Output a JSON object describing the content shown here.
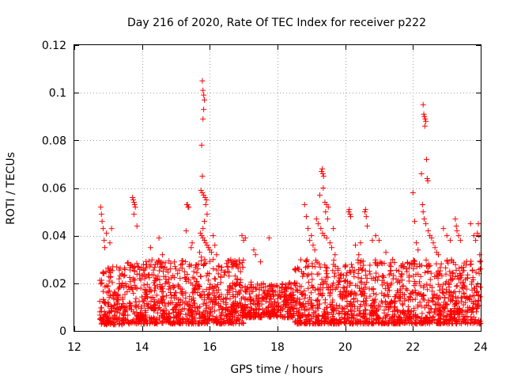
{
  "chart_data": {
    "type": "scatter",
    "title": "Day 216 of 2020, Rate Of TEC Index for receiver p222",
    "xlabel": "GPS time / hours",
    "ylabel": "ROTI / TECUs",
    "xlim": [
      12,
      24
    ],
    "ylim": [
      0,
      0.12
    ],
    "x_ticks": [
      12,
      14,
      16,
      18,
      20,
      22,
      24
    ],
    "x_tick_labels": [
      "12",
      "14",
      "16",
      "18",
      "20",
      "22",
      "24"
    ],
    "y_ticks": [
      0,
      0.02,
      0.04,
      0.06,
      0.08,
      0.1,
      0.12
    ],
    "y_tick_labels": [
      "0",
      "0.02",
      "0.04",
      "0.06",
      "0.08",
      "0.1",
      "0.12"
    ],
    "grid": true,
    "marker": "+",
    "marker_color": "#ff0000",
    "series": [
      {
        "name": "ROTI",
        "points": [
          [
            12.78,
            0.052
          ],
          [
            12.8,
            0.049
          ],
          [
            12.82,
            0.046
          ],
          [
            12.85,
            0.043
          ],
          [
            12.88,
            0.038
          ],
          [
            12.9,
            0.035
          ],
          [
            12.95,
            0.041
          ],
          [
            13.1,
            0.043
          ],
          [
            13.05,
            0.037
          ],
          [
            13.72,
            0.056
          ],
          [
            13.74,
            0.055
          ],
          [
            13.76,
            0.054
          ],
          [
            13.78,
            0.053
          ],
          [
            13.8,
            0.052
          ],
          [
            13.76,
            0.049
          ],
          [
            13.85,
            0.044
          ],
          [
            14.25,
            0.035
          ],
          [
            14.5,
            0.039
          ],
          [
            14.6,
            0.032
          ],
          [
            15.0,
            0.026
          ],
          [
            15.05,
            0.024
          ],
          [
            15.3,
            0.042
          ],
          [
            15.32,
            0.053
          ],
          [
            15.34,
            0.053
          ],
          [
            15.36,
            0.052
          ],
          [
            15.38,
            0.052
          ],
          [
            15.45,
            0.035
          ],
          [
            15.48,
            0.037
          ],
          [
            15.78,
            0.105
          ],
          [
            15.8,
            0.101
          ],
          [
            15.82,
            0.099
          ],
          [
            15.84,
            0.097
          ],
          [
            15.82,
            0.093
          ],
          [
            15.8,
            0.089
          ],
          [
            15.76,
            0.078
          ],
          [
            15.78,
            0.065
          ],
          [
            15.74,
            0.059
          ],
          [
            15.78,
            0.058
          ],
          [
            15.82,
            0.057
          ],
          [
            15.86,
            0.056
          ],
          [
            15.9,
            0.055
          ],
          [
            15.88,
            0.053
          ],
          [
            15.92,
            0.049
          ],
          [
            15.84,
            0.046
          ],
          [
            15.8,
            0.043
          ],
          [
            15.72,
            0.041
          ],
          [
            15.76,
            0.04
          ],
          [
            15.8,
            0.039
          ],
          [
            15.84,
            0.038
          ],
          [
            15.88,
            0.037
          ],
          [
            15.92,
            0.036
          ],
          [
            15.96,
            0.035
          ],
          [
            16.0,
            0.034
          ],
          [
            16.05,
            0.033
          ],
          [
            16.1,
            0.04
          ],
          [
            16.15,
            0.036
          ],
          [
            16.2,
            0.032
          ],
          [
            15.7,
            0.033
          ],
          [
            15.75,
            0.031
          ],
          [
            15.85,
            0.03
          ],
          [
            16.95,
            0.04
          ],
          [
            17.0,
            0.038
          ],
          [
            17.05,
            0.039
          ],
          [
            17.3,
            0.034
          ],
          [
            17.35,
            0.032
          ],
          [
            17.5,
            0.029
          ],
          [
            17.75,
            0.039
          ],
          [
            18.8,
            0.053
          ],
          [
            18.85,
            0.048
          ],
          [
            18.9,
            0.043
          ],
          [
            18.95,
            0.038
          ],
          [
            19.0,
            0.04
          ],
          [
            19.05,
            0.036
          ],
          [
            19.1,
            0.034
          ],
          [
            19.15,
            0.047
          ],
          [
            19.3,
            0.067
          ],
          [
            19.32,
            0.068
          ],
          [
            19.34,
            0.066
          ],
          [
            19.36,
            0.065
          ],
          [
            19.25,
            0.057
          ],
          [
            19.35,
            0.06
          ],
          [
            19.4,
            0.054
          ],
          [
            19.45,
            0.053
          ],
          [
            19.42,
            0.05
          ],
          [
            19.48,
            0.047
          ],
          [
            19.5,
            0.052
          ],
          [
            19.2,
            0.045
          ],
          [
            19.28,
            0.043
          ],
          [
            19.33,
            0.041
          ],
          [
            19.38,
            0.04
          ],
          [
            19.45,
            0.039
          ],
          [
            19.55,
            0.037
          ],
          [
            19.6,
            0.035
          ],
          [
            19.65,
            0.043
          ],
          [
            19.7,
            0.032
          ],
          [
            20.1,
            0.05
          ],
          [
            20.12,
            0.051
          ],
          [
            20.14,
            0.049
          ],
          [
            20.16,
            0.048
          ],
          [
            20.3,
            0.036
          ],
          [
            20.4,
            0.032
          ],
          [
            20.45,
            0.037
          ],
          [
            20.58,
            0.05
          ],
          [
            20.6,
            0.051
          ],
          [
            20.62,
            0.048
          ],
          [
            20.65,
            0.044
          ],
          [
            20.8,
            0.038
          ],
          [
            20.9,
            0.04
          ],
          [
            21.0,
            0.038
          ],
          [
            21.2,
            0.033
          ],
          [
            21.4,
            0.03
          ],
          [
            22.0,
            0.058
          ],
          [
            22.05,
            0.046
          ],
          [
            22.1,
            0.037
          ],
          [
            22.15,
            0.034
          ],
          [
            22.3,
            0.095
          ],
          [
            22.32,
            0.091
          ],
          [
            22.34,
            0.09
          ],
          [
            22.36,
            0.089
          ],
          [
            22.38,
            0.088
          ],
          [
            22.35,
            0.086
          ],
          [
            22.4,
            0.072
          ],
          [
            22.42,
            0.064
          ],
          [
            22.44,
            0.063
          ],
          [
            22.25,
            0.066
          ],
          [
            22.28,
            0.053
          ],
          [
            22.3,
            0.05
          ],
          [
            22.33,
            0.047
          ],
          [
            22.38,
            0.045
          ],
          [
            22.45,
            0.042
          ],
          [
            22.5,
            0.04
          ],
          [
            22.55,
            0.039
          ],
          [
            22.6,
            0.037
          ],
          [
            22.65,
            0.035
          ],
          [
            22.7,
            0.033
          ],
          [
            22.75,
            0.032
          ],
          [
            22.9,
            0.043
          ],
          [
            23.0,
            0.04
          ],
          [
            23.1,
            0.038
          ],
          [
            23.25,
            0.047
          ],
          [
            23.28,
            0.044
          ],
          [
            23.3,
            0.042
          ],
          [
            23.35,
            0.04
          ],
          [
            23.4,
            0.038
          ],
          [
            23.7,
            0.045
          ],
          [
            23.8,
            0.04
          ],
          [
            23.85,
            0.038
          ],
          [
            23.9,
            0.041
          ],
          [
            23.93,
            0.045
          ],
          [
            23.95,
            0.04
          ],
          [
            23.97,
            0.032
          ],
          [
            23.98,
            0.029
          ],
          [
            23.99,
            0.026
          ]
        ]
      }
    ],
    "bulk_band": {
      "description": "dense noise floor of ROTI samples",
      "x_range": [
        12.75,
        24.0
      ],
      "typical_range": [
        0.003,
        0.03
      ]
    }
  }
}
